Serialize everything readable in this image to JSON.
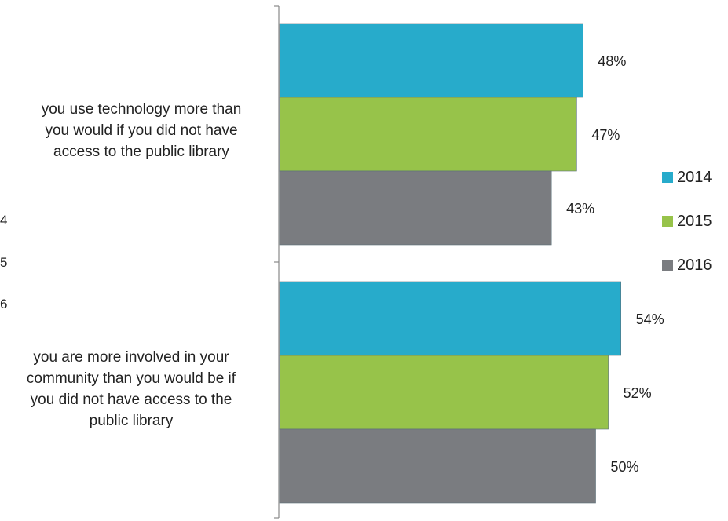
{
  "chart_data": {
    "type": "bar",
    "orientation": "horizontal",
    "categories": [
      "you use technology more than you would if you did not have access to the public library",
      "you are more involved in your community than you would be if you did not have access to the public library"
    ],
    "category_lines": [
      [
        "you use technology more than",
        "you would if you did not have",
        "access to the public library"
      ],
      [
        "you are more involved in your",
        "community than you would be if",
        "you did not have access to the",
        "public library"
      ]
    ],
    "series": [
      {
        "name": "2014",
        "color": "#27ABCB",
        "values": [
          48,
          54
        ]
      },
      {
        "name": "2015",
        "color": "#97C34A",
        "values": [
          47,
          52
        ]
      },
      {
        "name": "2016",
        "color": "#7A7C80",
        "values": [
          43,
          50
        ]
      }
    ],
    "value_suffix": "%",
    "xlim": [
      0,
      100
    ],
    "legend_position": "right",
    "grid": false
  },
  "edge_text": [
    "4",
    "5",
    "6"
  ]
}
